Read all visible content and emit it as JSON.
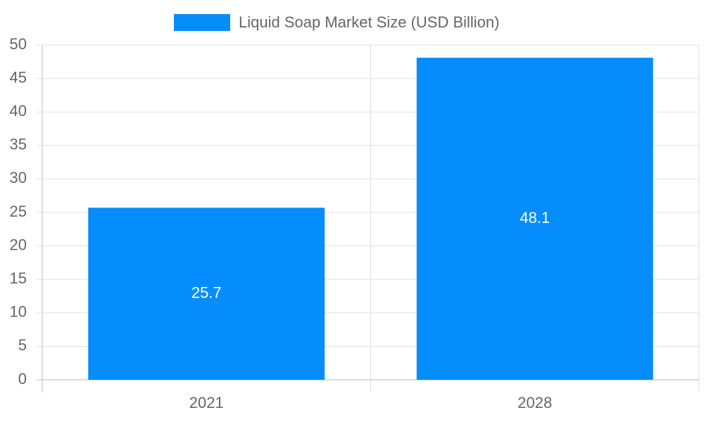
{
  "chart_data": {
    "type": "bar",
    "categories": [
      "2021",
      "2028"
    ],
    "series": [
      {
        "name": "Liquid Soap Market Size (USD Billion)",
        "color": "#068dfc",
        "values": [
          25.7,
          48.1
        ]
      }
    ],
    "ylim": [
      0,
      50
    ],
    "yticks": [
      0,
      5,
      10,
      15,
      20,
      25,
      30,
      35,
      40,
      45,
      50
    ],
    "grid": true,
    "legend": "top",
    "data_labels": true
  }
}
